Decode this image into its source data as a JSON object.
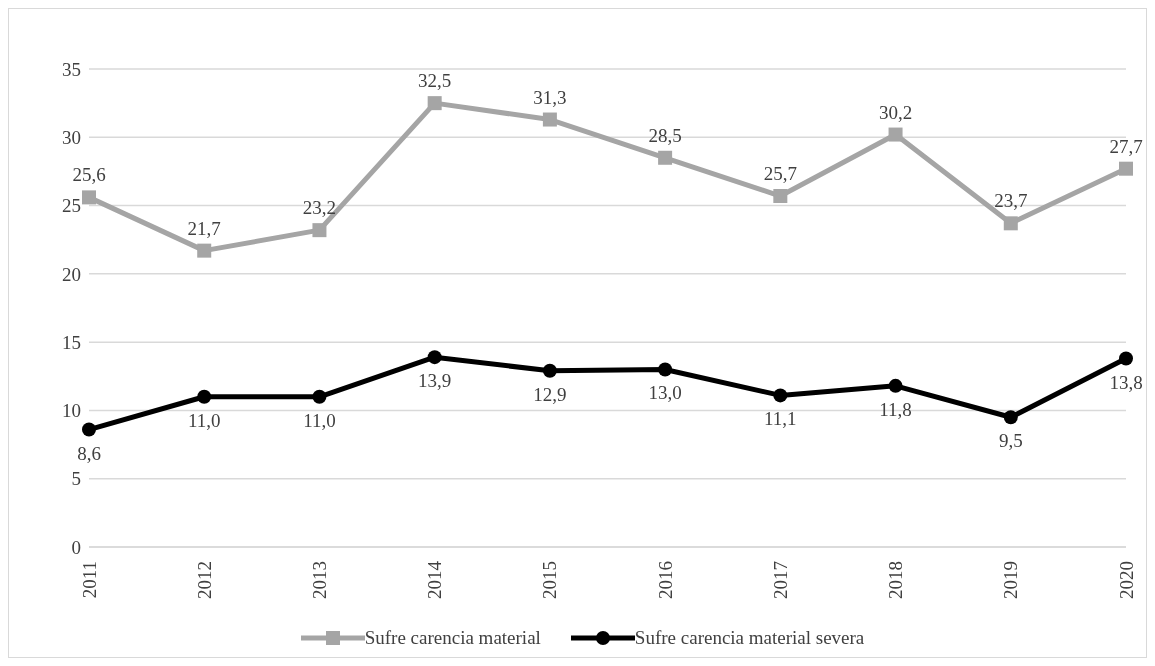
{
  "chart_data": {
    "type": "line",
    "categories": [
      "2011",
      "2012",
      "2013",
      "2014",
      "2015",
      "2016",
      "2017",
      "2018",
      "2019",
      "2020"
    ],
    "series": [
      {
        "name": "Sufre carencia material",
        "color": "#a5a5a5",
        "marker": "square",
        "values": [
          25.6,
          21.7,
          23.2,
          32.5,
          31.3,
          28.5,
          25.7,
          30.2,
          23.7,
          27.7
        ],
        "value_labels": [
          "25,6",
          "21,7",
          "23,2",
          "32,5",
          "31,3",
          "28,5",
          "25,7",
          "30,2",
          "23,7",
          "27,7"
        ]
      },
      {
        "name": "Sufre carencia material severa",
        "color": "#000000",
        "marker": "circle",
        "values": [
          8.6,
          11.0,
          11.0,
          13.9,
          12.9,
          13.0,
          11.1,
          11.8,
          9.5,
          13.8
        ],
        "value_labels": [
          "8,6",
          "11,0",
          "11,0",
          "13,9",
          "12,9",
          "13,0",
          "11,1",
          "11,8",
          "9,5",
          "13,8"
        ]
      }
    ],
    "ylim": [
      0,
      35
    ],
    "yticks": [
      0,
      5,
      10,
      15,
      20,
      25,
      30,
      35
    ],
    "grid": "y",
    "legend": "bottom"
  }
}
